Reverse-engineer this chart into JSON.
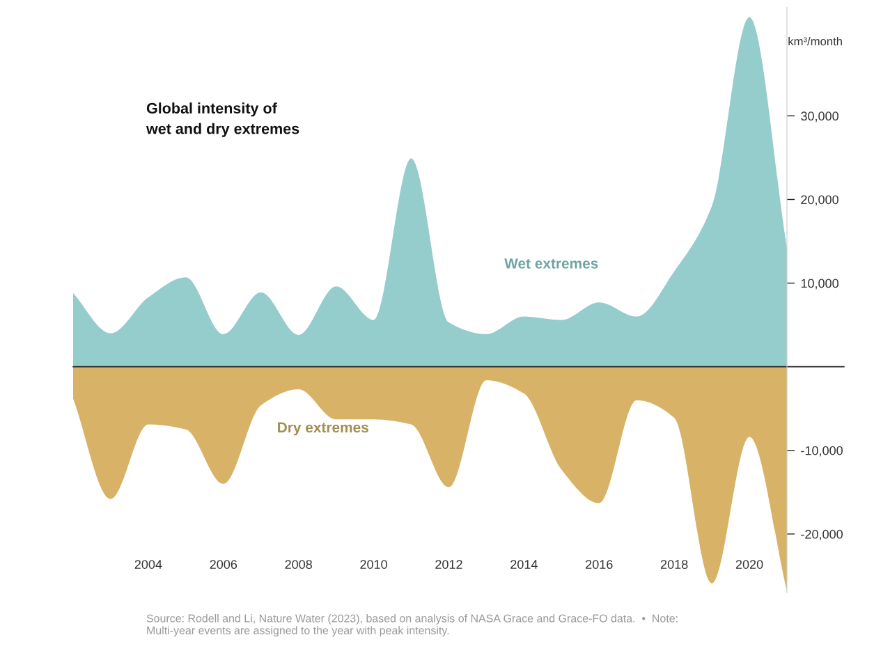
{
  "chart_data": {
    "type": "area",
    "title": "Global intensity of\nwet and dry extremes",
    "ylabel": "km³/month",
    "x": [
      2002,
      2003,
      2004,
      2005,
      2006,
      2007,
      2008,
      2009,
      2010,
      2011,
      2012,
      2013,
      2014,
      2015,
      2016,
      2017,
      2018,
      2019,
      2020,
      2021
    ],
    "series": [
      {
        "name": "Wet extremes",
        "color": "#95cccc",
        "values": [
          8800,
          4000,
          8300,
          10700,
          3900,
          8900,
          3800,
          9600,
          5600,
          24900,
          5300,
          3900,
          6000,
          5600,
          7700,
          6000,
          11400,
          19200,
          41800,
          14200
        ]
      },
      {
        "name": "Dry extremes",
        "color": "#d8b266",
        "values": [
          -3800,
          -15800,
          -6900,
          -7500,
          -14000,
          -4600,
          -2700,
          -6300,
          -6300,
          -6900,
          -14400,
          -1600,
          -3200,
          -12300,
          -16300,
          -4000,
          -6100,
          -25900,
          -8400,
          -26800
        ]
      }
    ],
    "xlim": [
      2002,
      2021
    ],
    "xticks": [
      2004,
      2006,
      2008,
      2010,
      2012,
      2014,
      2016,
      2018,
      2020
    ],
    "ylim": [
      -27000,
      43000
    ],
    "yticks": [
      {
        "value": 30000,
        "label": "30,000"
      },
      {
        "value": 20000,
        "label": "20,000"
      },
      {
        "value": 10000,
        "label": "10,000"
      },
      {
        "value": -10000,
        "label": "-10,000"
      },
      {
        "value": -20000,
        "label": "-20,000"
      }
    ],
    "ref_lines": [
      {
        "axis": "y",
        "value": 0,
        "color": "#222222"
      }
    ],
    "grid": false,
    "legend": false,
    "annotations": [
      "Source: Rodell and Li, Nature Water (2023), based on analysis of NASA Grace and Grace-FO data.  •  Note:\nMulti-year events are assigned to the year with peak intensity."
    ]
  }
}
